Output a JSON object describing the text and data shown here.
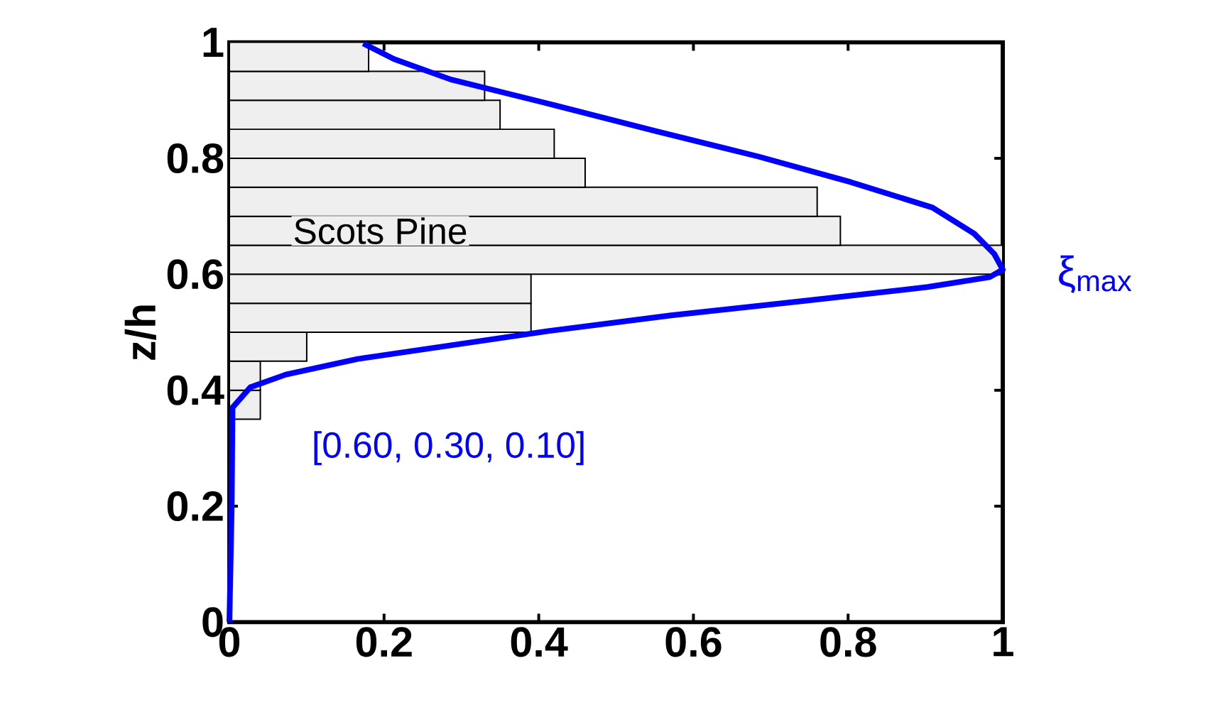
{
  "chart_data": {
    "type": "histogram",
    "orientation": "horizontal",
    "ylabel": "z/h",
    "bins": [
      0.35,
      0.4,
      0.45,
      0.5,
      0.55,
      0.6,
      0.65,
      0.7,
      0.75,
      0.8,
      0.85,
      0.9,
      0.95,
      1.0
    ],
    "values": [
      0.04,
      0.04,
      0.1,
      0.39,
      0.39,
      1.0,
      0.79,
      0.76,
      0.46,
      0.42,
      0.35,
      0.33,
      0.18
    ],
    "color": "#efefef",
    "series": [
      {
        "type": "line",
        "color": "#0000ff",
        "values": [
          0,
          0.003,
          0.004,
          0.027,
          0.073,
          0.166,
          0.279,
          0.412,
          0.571,
          0.75,
          0.903,
          0.983,
          1.0,
          0.989,
          0.963,
          0.909,
          0.803,
          0.684,
          0.551,
          0.419,
          0.286,
          0.213,
          0.173
        ],
        "x": [
          0,
          0.2,
          0.37,
          0.405,
          0.427,
          0.454,
          0.476,
          0.502,
          0.529,
          0.555,
          0.578,
          0.595,
          0.608,
          0.635,
          0.67,
          0.715,
          0.759,
          0.803,
          0.847,
          0.892,
          0.936,
          0.971,
          0.998
        ]
      }
    ],
    "annotations": [
      "Scots Pine",
      "[0.60, 0.30, 0.10]",
      {
        "text": "ξ$_{max}$",
        "x": 1.0,
        "y": 0.6
      }
    ],
    "xlim": [
      0,
      1
    ],
    "ylim": [
      0,
      1
    ],
    "xticks": [
      0,
      0.2,
      0.4,
      0.6,
      0.8,
      1
    ],
    "yticks": [
      0,
      0.2,
      0.4,
      0.6,
      0.8,
      1
    ],
    "grid": false
  }
}
